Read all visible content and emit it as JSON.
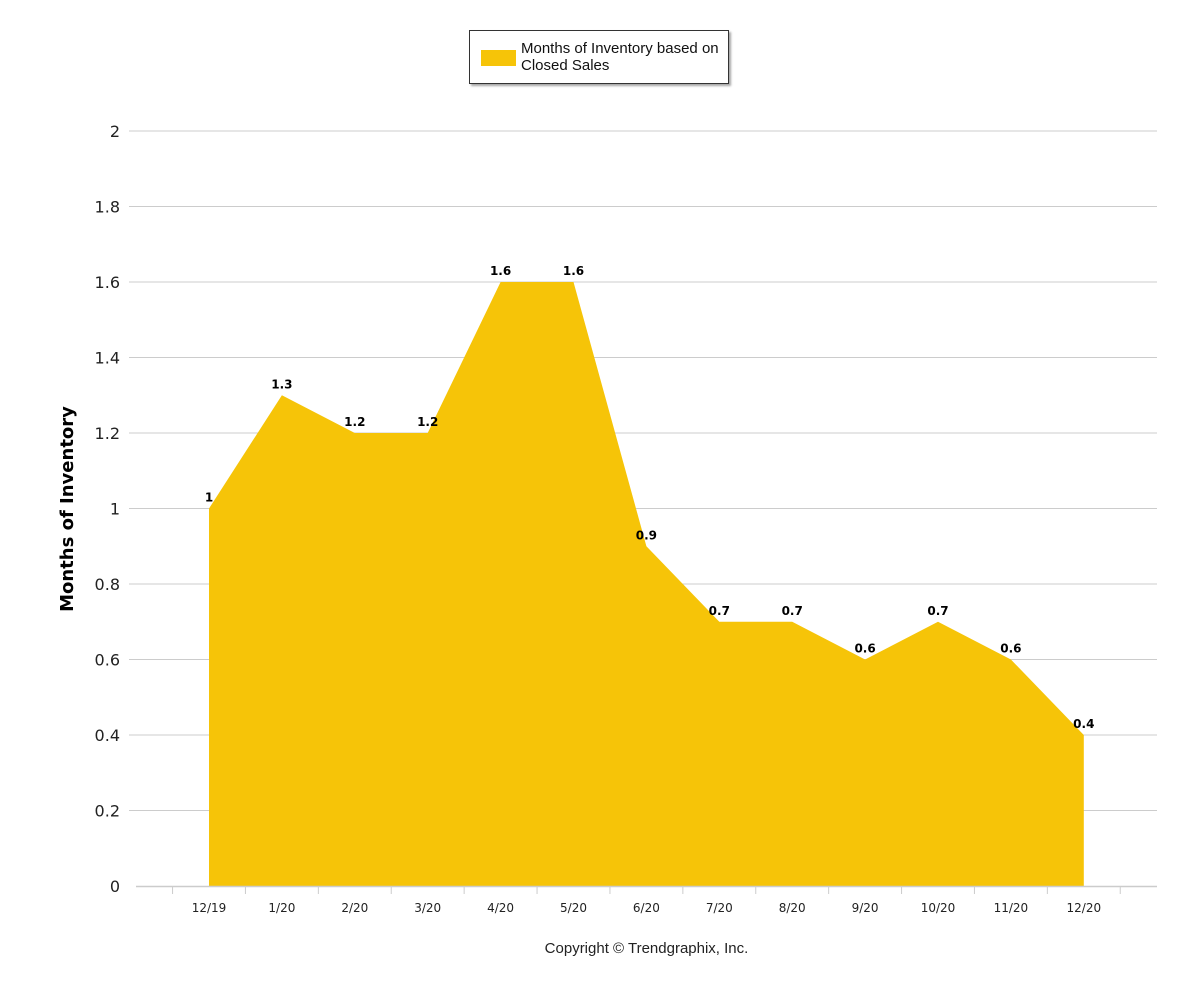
{
  "chart_data": {
    "type": "area",
    "categories": [
      "12/19",
      "1/20",
      "2/20",
      "3/20",
      "4/20",
      "5/20",
      "6/20",
      "7/20",
      "8/20",
      "9/20",
      "10/20",
      "11/20",
      "12/20"
    ],
    "series": [
      {
        "name": "Months of Inventory based on Closed Sales",
        "values": [
          1,
          1.3,
          1.2,
          1.2,
          1.6,
          1.6,
          0.9,
          0.7,
          0.7,
          0.6,
          0.7,
          0.6,
          0.4
        ],
        "labels": [
          "1",
          "1.3",
          "1.2",
          "1.2",
          "1.6",
          "1.6",
          "0.9",
          "0.7",
          "0.7",
          "0.6",
          "0.7",
          "0.6",
          "0.4"
        ],
        "color": "#F6C408"
      }
    ],
    "ylabel": "Months of Inventory",
    "xlabel": "",
    "ylim": [
      0,
      2
    ],
    "yticks": [
      0,
      0.2,
      0.4,
      0.6,
      0.8,
      1,
      1.2,
      1.4,
      1.6,
      1.8,
      2
    ],
    "ytick_labels": [
      "0",
      "0.2",
      "0.4",
      "0.6",
      "0.8",
      "1",
      "1.2",
      "1.4",
      "1.6",
      "1.8",
      "2"
    ],
    "grid": true,
    "legend_position": "top-center",
    "gridline_color": "#CCCCCC"
  },
  "legend": {
    "label": "Months of Inventory based on Closed Sales"
  },
  "footer": {
    "copyright": "Copyright © Trendgraphix, Inc."
  }
}
